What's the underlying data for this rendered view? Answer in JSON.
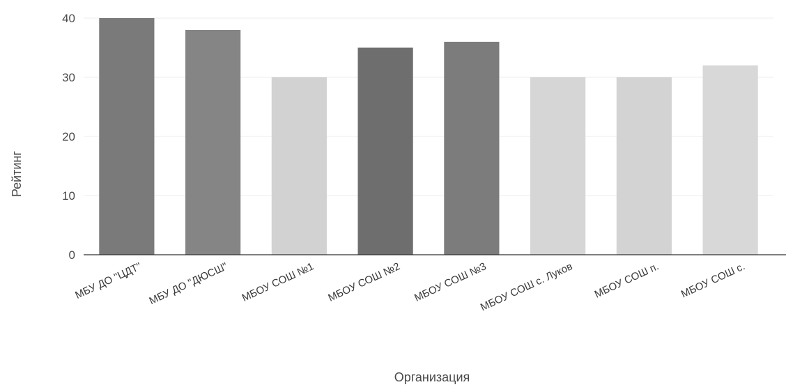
{
  "chart_data": {
    "type": "bar",
    "title": "",
    "xlabel": "Организация",
    "ylabel": "Рейтинг",
    "categories": [
      "МБУ ДО \"ЦДТ\"",
      "МБУ ДО \"ДЮСШ\"",
      "МБОУ СОШ №1",
      "МБОУ СОШ №2",
      "МБОУ СОШ №3",
      "МБОУ СОШ с. Луков",
      "МБОУ СОШ п.",
      "МБОУ СОШ с."
    ],
    "values": [
      40,
      38,
      30,
      35,
      36,
      30,
      30,
      32
    ],
    "bar_colors": [
      "#7a7a7a",
      "#858585",
      "#d2d2d2",
      "#6e6e6e",
      "#7c7c7c",
      "#d6d6d6",
      "#d3d3d3",
      "#d8d8d8"
    ],
    "ylim": [
      0,
      40
    ],
    "yticks": [
      0,
      10,
      20,
      30,
      40
    ],
    "grid": true,
    "legend": "none"
  }
}
